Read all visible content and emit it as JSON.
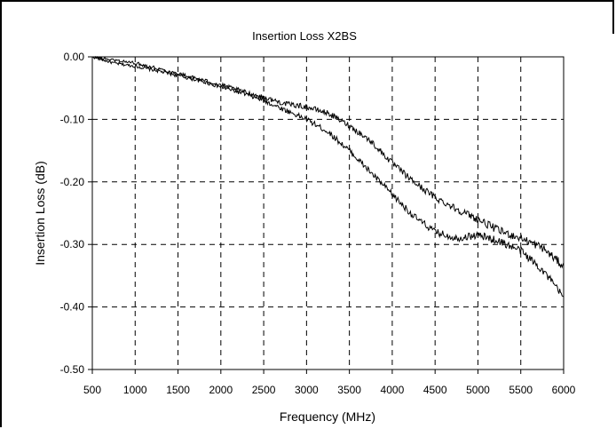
{
  "chart_data": {
    "type": "line",
    "title": "Insertion Loss X2BS",
    "xlabel": "Frequency (MHz)",
    "ylabel": "Insertion Loss (dB)",
    "xlim": [
      500,
      6000
    ],
    "ylim": [
      -0.5,
      0.0
    ],
    "x_ticks": [
      "500",
      "1000",
      "1500",
      "2000",
      "2500",
      "3000",
      "3500",
      "4000",
      "4500",
      "5000",
      "5500",
      "6000"
    ],
    "y_ticks": [
      "0.00",
      "-0.10",
      "-0.20",
      "-0.30",
      "-0.40",
      "-0.50"
    ],
    "grid": true,
    "grid_style": "dashed",
    "legend": "none",
    "line_color": "#000000",
    "series": [
      {
        "x": [
          500,
          750,
          1000,
          1250,
          1500,
          1750,
          2000,
          2250,
          2500,
          2750,
          3000,
          3250,
          3500,
          3750,
          4000,
          4250,
          4500,
          4750,
          5000,
          5250,
          5500,
          5750,
          6000
        ],
        "values": [
          0.0,
          -0.01,
          -0.015,
          -0.022,
          -0.03,
          -0.038,
          -0.048,
          -0.058,
          -0.07,
          -0.085,
          -0.1,
          -0.12,
          -0.15,
          -0.185,
          -0.22,
          -0.255,
          -0.28,
          -0.29,
          -0.285,
          -0.295,
          -0.31,
          -0.34,
          -0.385
        ]
      },
      {
        "x": [
          500,
          750,
          1000,
          1250,
          1500,
          1750,
          2000,
          2250,
          2500,
          2750,
          3000,
          3250,
          3500,
          3750,
          4000,
          4250,
          4500,
          4750,
          5000,
          5250,
          5500,
          5750,
          6000
        ],
        "values": [
          0.0,
          -0.005,
          -0.01,
          -0.018,
          -0.027,
          -0.036,
          -0.045,
          -0.055,
          -0.065,
          -0.075,
          -0.08,
          -0.09,
          -0.11,
          -0.135,
          -0.17,
          -0.2,
          -0.225,
          -0.243,
          -0.26,
          -0.278,
          -0.29,
          -0.305,
          -0.335
        ]
      }
    ]
  }
}
